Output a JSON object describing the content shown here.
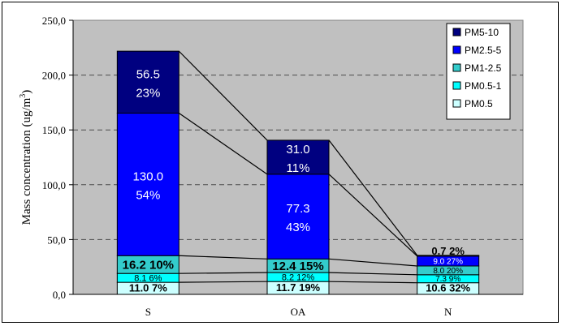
{
  "chart_data": {
    "type": "bar",
    "stacked": true,
    "categories": [
      "S",
      "OA",
      "N"
    ],
    "ylabel": "Mass concentration (ug/m3)",
    "ylim": [
      0,
      250
    ],
    "yticks": [
      "0,0",
      "50,0",
      "100,0",
      "150,0",
      "200,0",
      "250,0"
    ],
    "grid": true,
    "legend_position": "top-right",
    "series": [
      {
        "name": "PM0.5",
        "color": "#ccffff",
        "values": [
          11.0,
          11.7,
          10.6
        ],
        "labels": [
          "11.0  7%",
          "11.7  19%",
          "10.6  32%"
        ]
      },
      {
        "name": "PM0.5-1",
        "color": "#00ffff",
        "values": [
          8.1,
          8.2,
          7.3
        ],
        "labels": [
          "8.1  6%",
          "8.2  12%",
          "7.3  9%"
        ]
      },
      {
        "name": "PM1-2.5",
        "color": "#33cccc",
        "values": [
          16.2,
          12.4,
          8.0
        ],
        "labels": [
          "16.2  10%",
          "12.4  15%",
          "8.0  20%"
        ]
      },
      {
        "name": "PM2.5-5",
        "color": "#0000ff",
        "values": [
          130.0,
          77.3,
          9.0
        ],
        "labels": [
          "130.0\n54%",
          "77.3\n43%",
          "9.0  27%"
        ]
      },
      {
        "name": "PM5-10",
        "color": "#000080",
        "values": [
          56.5,
          31.0,
          0.7
        ],
        "labels": [
          "56.5\n23%",
          "31.0\n11%",
          "0.7  2%"
        ]
      }
    ]
  }
}
